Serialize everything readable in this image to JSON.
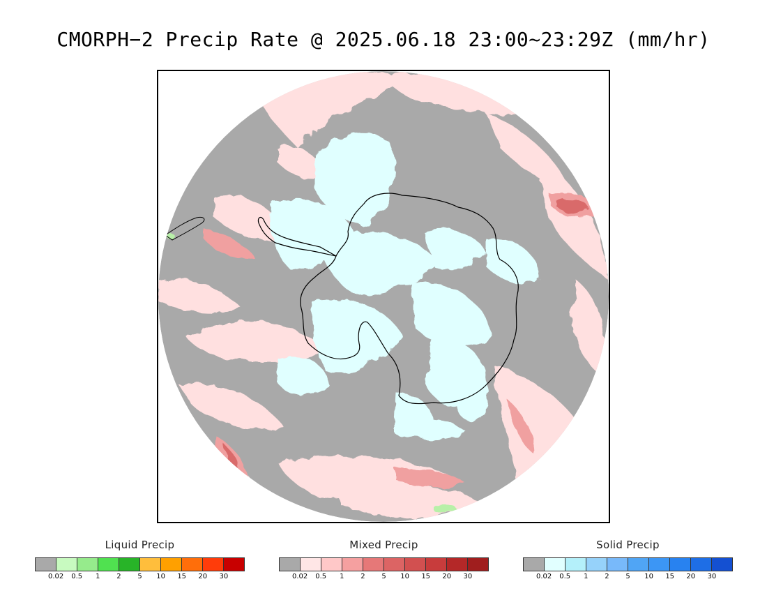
{
  "title": "CMORPH−2 Precip Rate @ 2025.06.18 23:00~23:29Z (mm/hr)",
  "map": {
    "projection": "south-polar-stereographic",
    "colors": {
      "no_data_background": "#a9a9a9",
      "mixed_light": "#ffe0e0",
      "mixed_medium": "#f0a0a0",
      "mixed_strong": "#d96a6a",
      "solid_light": "#e0ffff",
      "liquid_light": "#b8f0a8",
      "liquid_medium": "#66dd55",
      "coastline": "#000000"
    }
  },
  "legends": [
    {
      "title": "Liquid Precip",
      "colors": [
        "#a9a9a9",
        "#c8fac0",
        "#96eb8c",
        "#50e150",
        "#28b428",
        "#ffbe3c",
        "#ffa000",
        "#ff6e0a",
        "#ff3c0a",
        "#c80000"
      ],
      "ticks": [
        "0.02",
        "0.5",
        "1",
        "2",
        "5",
        "10",
        "15",
        "20",
        "30"
      ]
    },
    {
      "title": "Mixed Precip",
      "colors": [
        "#a9a9a9",
        "#ffe6e6",
        "#ffc8c8",
        "#f5a0a0",
        "#e67878",
        "#dc6464",
        "#d25050",
        "#c83c3c",
        "#b42828",
        "#a01e1e"
      ],
      "ticks": [
        "0.02",
        "0.5",
        "1",
        "2",
        "5",
        "10",
        "15",
        "20",
        "30"
      ]
    },
    {
      "title": "Solid Precip",
      "colors": [
        "#a9a9a9",
        "#e1ffff",
        "#b4f0fa",
        "#96d2fa",
        "#78b9fa",
        "#50a5f5",
        "#3c96f5",
        "#2882f0",
        "#1e6ee6",
        "#1450d2"
      ],
      "ticks": [
        "0.02",
        "0.5",
        "1",
        "2",
        "5",
        "10",
        "15",
        "20",
        "30"
      ]
    }
  ]
}
